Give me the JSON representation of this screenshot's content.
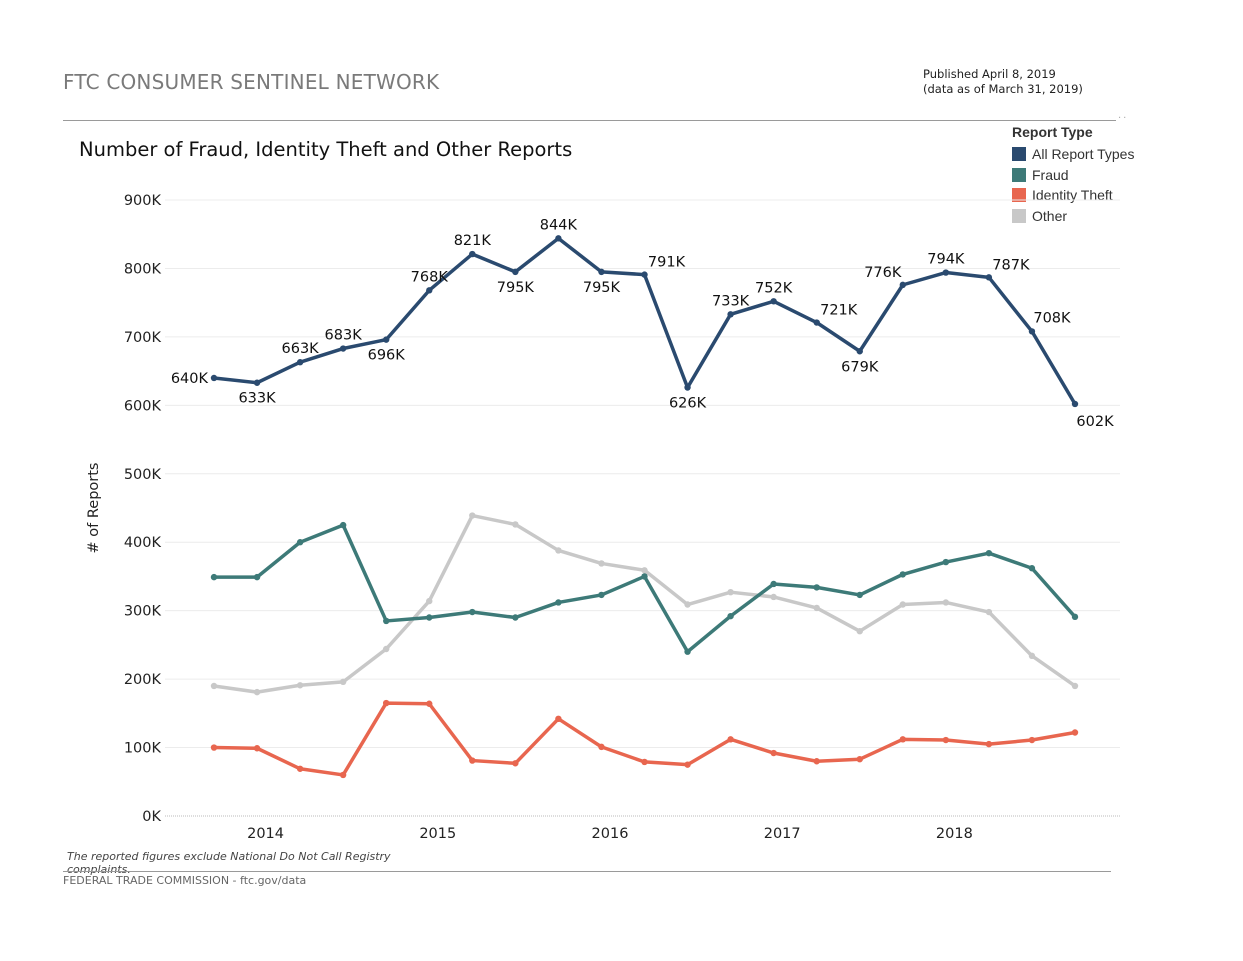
{
  "header": {
    "title": "FTC CONSUMER SENTINEL NETWORK",
    "published_line1": "Published April 8, 2019",
    "published_line2": "(data as of March 31, 2019)"
  },
  "legend": {
    "title": "Report Type",
    "items": [
      {
        "label": "All Report Types",
        "color": "#2a4a6f"
      },
      {
        "label": "Fraud",
        "color": "#3d7a78"
      },
      {
        "label": "Identity Theft",
        "color": "#e8664f"
      },
      {
        "label": "Other",
        "color": "#c8c8c8"
      }
    ]
  },
  "footnote": "The reported figures exclude National Do Not Call Registry complaints.",
  "footer": "FEDERAL TRADE COMMISSION - ftc.gov/data",
  "chart_data": {
    "type": "line",
    "title": "Number of Fraud, Identity Theft and Other Reports",
    "xlabel": "",
    "ylabel": "# of Reports",
    "ylim": [
      0,
      900000
    ],
    "yticks": [
      0,
      100000,
      200000,
      300000,
      400000,
      500000,
      600000,
      700000,
      800000,
      900000
    ],
    "ytick_labels": [
      "0K",
      "100K",
      "200K",
      "300K",
      "400K",
      "500K",
      "600K",
      "700K",
      "800K",
      "900K"
    ],
    "grid": true,
    "legend_position": "top-right",
    "x_unit": "quarter",
    "x": [
      "2013 Q4",
      "2014 Q1",
      "2014 Q2",
      "2014 Q3",
      "2014 Q4",
      "2015 Q1",
      "2015 Q2",
      "2015 Q3",
      "2015 Q4",
      "2016 Q1",
      "2016 Q2",
      "2016 Q3",
      "2016 Q4",
      "2017 Q1",
      "2017 Q2",
      "2017 Q3",
      "2017 Q4",
      "2018 Q1",
      "2018 Q2",
      "2018 Q3",
      "2018 Q4"
    ],
    "xtick_labels": [
      {
        "label": "2014",
        "at_index": 1.5
      },
      {
        "label": "2015",
        "at_index": 5.5
      },
      {
        "label": "2016",
        "at_index": 9.5
      },
      {
        "label": "2017",
        "at_index": 13.5
      },
      {
        "label": "2018",
        "at_index": 17.5
      }
    ],
    "series": [
      {
        "name": "All Report Types",
        "color": "#2a4a6f",
        "values": [
          640000,
          633000,
          663000,
          683000,
          696000,
          768000,
          821000,
          795000,
          844000,
          795000,
          791000,
          626000,
          733000,
          752000,
          721000,
          679000,
          776000,
          794000,
          787000,
          708000,
          602000
        ],
        "labels": [
          "640K",
          "633K",
          "663K",
          "683K",
          "696K",
          "768K",
          "821K",
          "795K",
          "844K",
          "795K",
          "791K",
          "626K",
          "733K",
          "752K",
          "721K",
          "679K",
          "776K",
          "794K",
          "787K",
          "708K",
          "602K"
        ],
        "label_positions": [
          "left",
          "below",
          "above",
          "above",
          "below",
          "above",
          "above",
          "below",
          "above",
          "below",
          "above-right",
          "below",
          "above",
          "above",
          "above-right",
          "below",
          "above-left",
          "above",
          "above-right",
          "right",
          "below-right"
        ]
      },
      {
        "name": "Fraud",
        "color": "#3d7a78",
        "values": [
          349000,
          349000,
          400000,
          425000,
          285000,
          290000,
          298000,
          290000,
          312000,
          323000,
          350000,
          240000,
          292000,
          339000,
          334000,
          323000,
          353000,
          371000,
          384000,
          362000,
          291000
        ]
      },
      {
        "name": "Identity Theft",
        "color": "#e8664f",
        "values": [
          100000,
          99000,
          69000,
          60000,
          165000,
          164000,
          81000,
          77000,
          142000,
          101000,
          79000,
          75000,
          112000,
          92000,
          80000,
          83000,
          112000,
          111000,
          105000,
          111000,
          122000
        ]
      },
      {
        "name": "Other",
        "color": "#c8c8c8",
        "values": [
          190000,
          181000,
          191000,
          196000,
          244000,
          314000,
          439000,
          426000,
          388000,
          369000,
          359000,
          309000,
          327000,
          320000,
          304000,
          270000,
          309000,
          312000,
          298000,
          234000,
          190000
        ]
      }
    ]
  }
}
